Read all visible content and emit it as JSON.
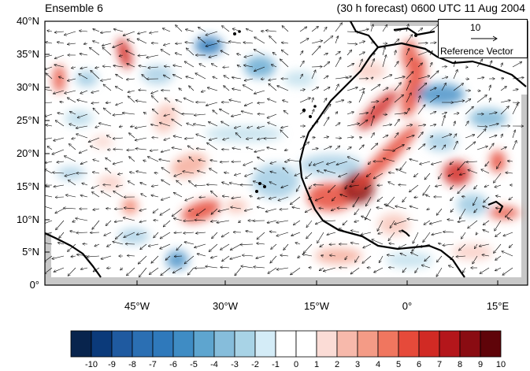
{
  "title": {
    "left": "Ensemble 6",
    "right": "(30 h forecast) 0600 UTC 11 Aug 2004"
  },
  "map": {
    "lat_labels": [
      "40°N",
      "35°N",
      "30°N",
      "25°N",
      "20°N",
      "15°N",
      "10°N",
      "5°N",
      "0°"
    ],
    "lon_labels": [
      "45°W",
      "30°W",
      "15°W",
      "0°",
      "15°E"
    ],
    "reference_vector": {
      "value": "10",
      "label": "Reference Vector"
    }
  },
  "colorbar": {
    "labels": [
      "-10",
      "-9",
      "-8",
      "-7",
      "-6",
      "-5",
      "-4",
      "-3",
      "-2",
      "-1",
      "0",
      "1",
      "2",
      "3",
      "4",
      "5",
      "6",
      "7",
      "8",
      "9",
      "10"
    ],
    "colors": [
      "#08244d",
      "#0b3a7a",
      "#1f5aa0",
      "#2b6fb3",
      "#2f79bb",
      "#3f8cc4",
      "#5ea5cf",
      "#86bddb",
      "#a8d3e6",
      "#d4ecf7",
      "#ffffff",
      "#ffffff",
      "#fbdcd6",
      "#f7b9ab",
      "#f49b86",
      "#f0765f",
      "#e64a3a",
      "#d12a24",
      "#b4161b",
      "#8a0c12",
      "#5f0409"
    ]
  },
  "colors": {
    "land_outline": "#000000",
    "missing_gray": "#c8c8c8"
  }
}
